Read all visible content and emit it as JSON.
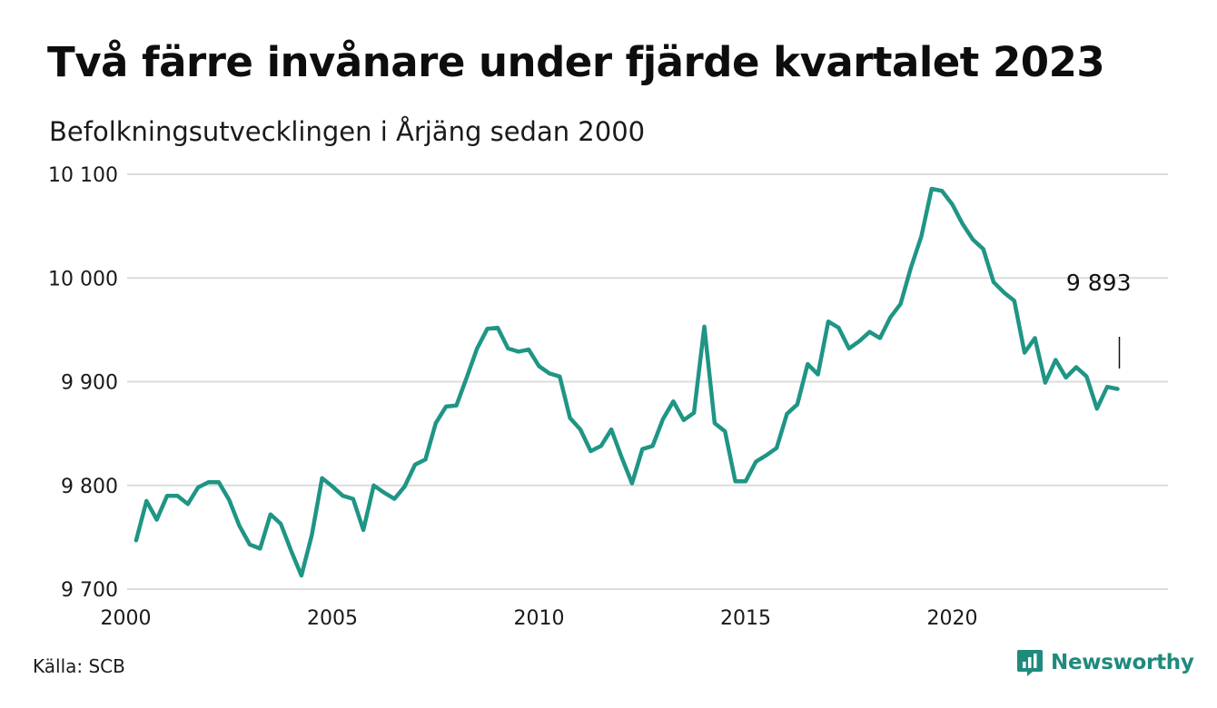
{
  "title": "Två färre invånare under fjärde kvartalet 2023",
  "subtitle": "Befolkningsutvecklingen i Årjäng sedan 2000",
  "source": "Källa: SCB",
  "brand": {
    "name": "Newsworthy",
    "icon": "newsworthy-logo-icon",
    "color": "#1f8a7e"
  },
  "chart_data": {
    "type": "line",
    "ylim": [
      9700,
      10100
    ],
    "xlim": [
      2000,
      2024.9
    ],
    "yticks": [
      {
        "value": 10100,
        "label": "10 100"
      },
      {
        "value": 10000,
        "label": "10 000"
      },
      {
        "value": 9900,
        "label": "9 900"
      },
      {
        "value": 9800,
        "label": "9 800"
      },
      {
        "value": 9700,
        "label": "9 700"
      }
    ],
    "xticks": [
      {
        "value": 2000,
        "label": "2000"
      },
      {
        "value": 2005,
        "label": "2005"
      },
      {
        "value": 2010,
        "label": "2010"
      },
      {
        "value": 2015,
        "label": "2015"
      },
      {
        "value": 2020,
        "label": "2020"
      }
    ],
    "grid": true,
    "line_color": "#1f9585",
    "annotation": {
      "x": 2024,
      "y": 9893,
      "label": "9 893"
    },
    "series": [
      {
        "x": [
          2000.25,
          2000.5,
          2000.75,
          2001,
          2001.25,
          2001.5,
          2001.75,
          2002,
          2002.25,
          2002.5,
          2002.75,
          2003,
          2003.25,
          2003.5,
          2003.75,
          2004,
          2004.25,
          2004.5,
          2004.75,
          2005,
          2005.25,
          2005.5,
          2005.75,
          2006,
          2006.25,
          2006.5,
          2006.75,
          2007,
          2007.25,
          2007.5,
          2007.75,
          2008,
          2008.25,
          2008.5,
          2008.75,
          2009,
          2009.25,
          2009.5,
          2009.75,
          2010,
          2010.25,
          2010.5,
          2010.75,
          2011,
          2011.25,
          2011.5,
          2011.75,
          2012,
          2012.25,
          2012.5,
          2012.75,
          2013,
          2013.25,
          2013.5,
          2013.75,
          2014,
          2014.25,
          2014.5,
          2014.75,
          2015,
          2015.25,
          2015.5,
          2015.75,
          2016,
          2016.25,
          2016.5,
          2016.75,
          2017,
          2017.25,
          2017.5,
          2017.75,
          2018,
          2018.25,
          2018.5,
          2018.75,
          2019,
          2019.25,
          2019.5,
          2019.75,
          2020,
          2020.25,
          2020.5,
          2020.75,
          2021,
          2021.25,
          2021.5,
          2021.75,
          2022,
          2022.25,
          2022.5,
          2022.75,
          2023,
          2023.25,
          2023.5,
          2023.75,
          2024
        ],
        "values": [
          9747,
          9785,
          9767,
          9790,
          9790,
          9782,
          9798,
          9803,
          9803,
          9786,
          9761,
          9743,
          9739,
          9772,
          9763,
          9737,
          9713,
          9752,
          9807,
          9799,
          9790,
          9787,
          9757,
          9800,
          9793,
          9787,
          9799,
          9820,
          9825,
          9860,
          9876,
          9877,
          9904,
          9932,
          9951,
          9952,
          9932,
          9929,
          9931,
          9915,
          9908,
          9905,
          9865,
          9854,
          9833,
          9838,
          9854,
          9827,
          9802,
          9835,
          9838,
          9864,
          9881,
          9863,
          9870,
          9953,
          9860,
          9852,
          9804,
          9804,
          9823,
          9829,
          9836,
          9869,
          9878,
          9917,
          9907,
          9958,
          9952,
          9932,
          9939,
          9948,
          9942,
          9962,
          9975,
          10010,
          10040,
          10086,
          10084,
          10071,
          10052,
          10037,
          10028,
          9996,
          9986,
          9978,
          9928,
          9942,
          9899,
          9921,
          9904,
          9914,
          9905,
          9874,
          9895,
          9893
        ]
      }
    ]
  }
}
